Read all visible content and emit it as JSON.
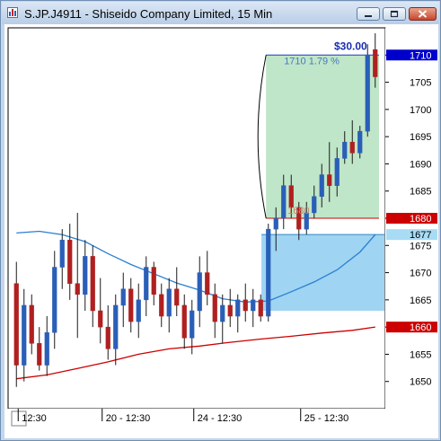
{
  "window": {
    "title": "S.JP.J4911 - Shiseido Company Limited, 15 Min"
  },
  "chart_data": {
    "type": "candlestick",
    "symbol": "S.JP.J4911",
    "timeframe": "15 Min",
    "ylim": [
      1645,
      1715
    ],
    "y_ticks": [
      1650,
      1655,
      1660,
      1665,
      1670,
      1675,
      1680,
      1685,
      1690,
      1695,
      1700,
      1705,
      1710
    ],
    "x_ticks": [
      "12:30",
      "20 - 12:30",
      "24 - 12:30",
      "25 - 12:30"
    ],
    "price_labels": [
      {
        "text": "1710",
        "value": 1710,
        "color": "#0000cc",
        "text_color": "#ffffff"
      },
      {
        "text": "1680",
        "value": 1680,
        "color": "#cc0000",
        "text_color": "#ffffff"
      },
      {
        "text": "1677",
        "value": 1677,
        "color": "#a8dcf5",
        "text_color": "#000000"
      },
      {
        "text": "1660",
        "value": 1660,
        "color": "#cc0000",
        "text_color": "#ffffff"
      }
    ],
    "annotations": {
      "profit": "$30.00",
      "target": "1710  1.79  %",
      "entry": "1680"
    },
    "candles": [
      {
        "o": 1668,
        "h": 1672,
        "l": 1649,
        "c": 1653
      },
      {
        "o": 1653,
        "h": 1667,
        "l": 1650,
        "c": 1664
      },
      {
        "o": 1664,
        "h": 1666,
        "l": 1655,
        "c": 1657
      },
      {
        "o": 1657,
        "h": 1660,
        "l": 1652,
        "c": 1653
      },
      {
        "o": 1653,
        "h": 1662,
        "l": 1651,
        "c": 1659
      },
      {
        "o": 1659,
        "h": 1674,
        "l": 1656,
        "c": 1671
      },
      {
        "o": 1671,
        "h": 1678,
        "l": 1667,
        "c": 1676
      },
      {
        "o": 1676,
        "h": 1679,
        "l": 1665,
        "c": 1668
      },
      {
        "o": 1668,
        "h": 1681,
        "l": 1658,
        "c": 1666
      },
      {
        "o": 1666,
        "h": 1676,
        "l": 1663,
        "c": 1673
      },
      {
        "o": 1673,
        "h": 1675,
        "l": 1660,
        "c": 1663
      },
      {
        "o": 1663,
        "h": 1669,
        "l": 1657,
        "c": 1660
      },
      {
        "o": 1660,
        "h": 1664,
        "l": 1654,
        "c": 1656
      },
      {
        "o": 1656,
        "h": 1666,
        "l": 1653,
        "c": 1664
      },
      {
        "o": 1664,
        "h": 1670,
        "l": 1660,
        "c": 1667
      },
      {
        "o": 1667,
        "h": 1669,
        "l": 1659,
        "c": 1661
      },
      {
        "o": 1661,
        "h": 1668,
        "l": 1658,
        "c": 1665
      },
      {
        "o": 1665,
        "h": 1673,
        "l": 1662,
        "c": 1671
      },
      {
        "o": 1671,
        "h": 1672,
        "l": 1664,
        "c": 1666
      },
      {
        "o": 1666,
        "h": 1668,
        "l": 1660,
        "c": 1662
      },
      {
        "o": 1662,
        "h": 1669,
        "l": 1659,
        "c": 1667
      },
      {
        "o": 1667,
        "h": 1671,
        "l": 1662,
        "c": 1664
      },
      {
        "o": 1664,
        "h": 1666,
        "l": 1656,
        "c": 1658
      },
      {
        "o": 1658,
        "h": 1665,
        "l": 1655,
        "c": 1663
      },
      {
        "o": 1663,
        "h": 1673,
        "l": 1660,
        "c": 1670
      },
      {
        "o": 1670,
        "h": 1674,
        "l": 1664,
        "c": 1666
      },
      {
        "o": 1666,
        "h": 1668,
        "l": 1658,
        "c": 1661
      },
      {
        "o": 1661,
        "h": 1666,
        "l": 1657,
        "c": 1664
      },
      {
        "o": 1664,
        "h": 1667,
        "l": 1660,
        "c": 1662
      },
      {
        "o": 1662,
        "h": 1666,
        "l": 1659,
        "c": 1665
      },
      {
        "o": 1665,
        "h": 1668,
        "l": 1661,
        "c": 1663
      },
      {
        "o": 1663,
        "h": 1667,
        "l": 1660,
        "c": 1665
      },
      {
        "o": 1665,
        "h": 1666,
        "l": 1661,
        "c": 1662
      },
      {
        "o": 1662,
        "h": 1679,
        "l": 1661,
        "c": 1678
      },
      {
        "o": 1678,
        "h": 1682,
        "l": 1674,
        "c": 1680
      },
      {
        "o": 1680,
        "h": 1688,
        "l": 1678,
        "c": 1686
      },
      {
        "o": 1686,
        "h": 1688,
        "l": 1680,
        "c": 1682
      },
      {
        "o": 1682,
        "h": 1683,
        "l": 1676,
        "c": 1678
      },
      {
        "o": 1678,
        "h": 1683,
        "l": 1677,
        "c": 1681
      },
      {
        "o": 1681,
        "h": 1686,
        "l": 1680,
        "c": 1684
      },
      {
        "o": 1684,
        "h": 1690,
        "l": 1682,
        "c": 1688
      },
      {
        "o": 1688,
        "h": 1694,
        "l": 1683,
        "c": 1686
      },
      {
        "o": 1686,
        "h": 1693,
        "l": 1684,
        "c": 1691
      },
      {
        "o": 1691,
        "h": 1696,
        "l": 1690,
        "c": 1694
      },
      {
        "o": 1694,
        "h": 1698,
        "l": 1690,
        "c": 1692
      },
      {
        "o": 1692,
        "h": 1697,
        "l": 1691,
        "c": 1696
      },
      {
        "o": 1696,
        "h": 1712,
        "l": 1695,
        "c": 1710
      },
      {
        "o": 1711,
        "h": 1714,
        "l": 1704,
        "c": 1706
      }
    ],
    "ma_fast": [
      [
        0,
        1677.3
      ],
      [
        3,
        1677.6
      ],
      [
        6,
        1677.0
      ],
      [
        9,
        1675.7
      ],
      [
        12,
        1673.5
      ],
      [
        15,
        1671.5
      ],
      [
        18,
        1669.8
      ],
      [
        21,
        1668.1
      ],
      [
        24,
        1666.8
      ],
      [
        27,
        1665.2
      ],
      [
        30,
        1664.6
      ],
      [
        33,
        1664.8
      ],
      [
        36,
        1666.5
      ],
      [
        39,
        1668.3
      ],
      [
        42,
        1670.5
      ],
      [
        45,
        1673.8
      ],
      [
        47,
        1677.0
      ]
    ],
    "ma_slow": [
      [
        0,
        1650.5
      ],
      [
        4,
        1651.2
      ],
      [
        8,
        1652.4
      ],
      [
        12,
        1653.6
      ],
      [
        16,
        1655.0
      ],
      [
        20,
        1656.0
      ],
      [
        24,
        1656.5
      ],
      [
        28,
        1657.2
      ],
      [
        32,
        1657.8
      ],
      [
        36,
        1658.3
      ],
      [
        40,
        1658.9
      ],
      [
        44,
        1659.4
      ],
      [
        47,
        1660.0
      ]
    ],
    "trade": {
      "entry": 1680,
      "target": 1710,
      "stop": 1677,
      "stop_zone_low": 1663,
      "start_index": 33,
      "end_index": 47,
      "stop_start_index": 32,
      "stop_end_index": 48
    }
  }
}
